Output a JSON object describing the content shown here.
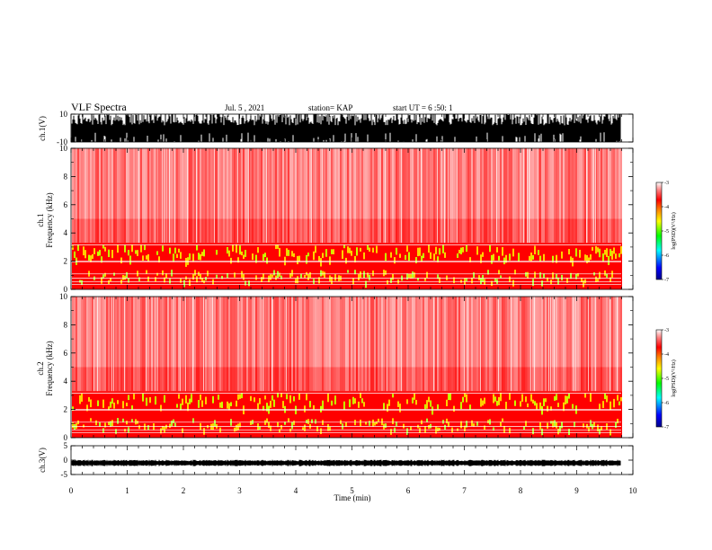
{
  "header": {
    "title": "VLF Spectra",
    "date": "Jul. 5 , 2021",
    "station": "station= KAP",
    "start_ut": "start UT = 6 :50: 1"
  },
  "chart_data": [
    {
      "type": "line",
      "panel": "ch1-waveform",
      "ylabel": "ch.1(V)",
      "ylim": [
        -10,
        10
      ],
      "y_ticks": [
        "10",
        "-10"
      ],
      "xlim": [
        0,
        10
      ],
      "trace_color": "#000000",
      "note_style": "dense saturated waveform filling most of the range"
    },
    {
      "type": "heatmap",
      "panel": "ch1-spectrogram",
      "ylabel": "ch.1 Frequency (kHz)",
      "ylabel_line1": "ch.1",
      "ylabel_line2": "Frequency (kHz)",
      "ylim": [
        0,
        10
      ],
      "y_ticks": [
        "0",
        "2",
        "4",
        "6",
        "8",
        "10"
      ],
      "xlim": [
        0,
        10
      ],
      "colorbar": {
        "label": "log(PSD)(V²/Hz)",
        "range": [
          -7,
          -3
        ],
        "ticks": [
          "-3",
          "-4",
          "-5",
          "-6",
          "-7"
        ],
        "colors": [
          "#000080",
          "#0000ff",
          "#00ffff",
          "#00ff00",
          "#ffff00",
          "#ff0000",
          "#ffffff"
        ]
      }
    },
    {
      "type": "heatmap",
      "panel": "ch2-spectrogram",
      "ylabel": "ch.2 Frequency (kHz)",
      "ylabel_line1": "ch.2",
      "ylabel_line2": "Frequency (kHz)",
      "ylim": [
        0,
        10
      ],
      "y_ticks": [
        "0",
        "2",
        "4",
        "6",
        "8",
        "10"
      ],
      "xlim": [
        0,
        10
      ],
      "colorbar": {
        "label": "log(PSD)(V²/Hz)",
        "range": [
          -7,
          -3
        ],
        "ticks": [
          "-3",
          "-4",
          "-5",
          "-6",
          "-7"
        ],
        "colors": [
          "#000080",
          "#0000ff",
          "#00ffff",
          "#00ff00",
          "#ffff00",
          "#ff0000",
          "#ffffff"
        ]
      }
    },
    {
      "type": "line",
      "panel": "ch3-waveform",
      "ylabel": "ch.3(V)",
      "ylim": [
        -5,
        5
      ],
      "y_ticks": [
        "5",
        "0",
        "-5"
      ],
      "xlim": [
        0,
        10
      ],
      "trace_color": "#000000",
      "trace_level": -1
    }
  ],
  "xaxis": {
    "label": "Time (min)",
    "ticks": [
      "0",
      "1",
      "2",
      "3",
      "4",
      "5",
      "6",
      "7",
      "8",
      "9",
      "10"
    ]
  }
}
